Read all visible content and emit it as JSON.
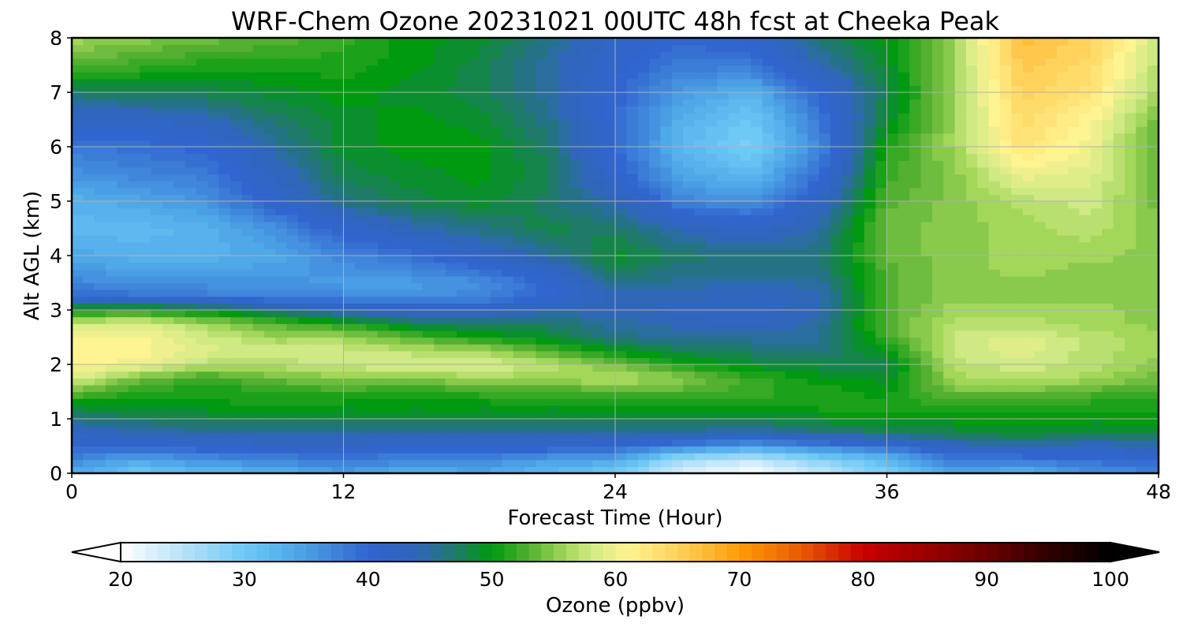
{
  "chart_data": {
    "type": "heatmap",
    "title": "WRF-Chem Ozone  20231021 00UTC 48h fcst at Cheeka Peak",
    "xlabel": "Forecast Time (Hour)",
    "ylabel": "Alt AGL (km)",
    "xlim": [
      0,
      48
    ],
    "ylim": [
      0,
      8
    ],
    "x_ticks": [
      0,
      12,
      24,
      36,
      48
    ],
    "y_ticks": [
      0,
      1,
      2,
      3,
      4,
      5,
      6,
      7,
      8
    ],
    "grid": true,
    "x": [
      0,
      3,
      6,
      9,
      12,
      15,
      18,
      21,
      24,
      27,
      30,
      33,
      36,
      39,
      42,
      45,
      48
    ],
    "y": [
      0,
      0.25,
      0.5,
      0.75,
      1,
      1.25,
      1.5,
      1.75,
      2,
      2.25,
      2.5,
      2.75,
      3,
      3.25,
      3.5,
      3.75,
      4,
      4.5,
      5,
      5.5,
      6,
      6.5,
      7,
      7.5,
      8
    ],
    "z": [
      [
        34,
        30,
        32,
        33,
        35,
        33,
        34,
        32,
        30,
        22,
        20,
        24,
        29,
        34,
        33,
        36,
        37
      ],
      [
        37,
        34,
        36,
        37,
        38,
        37,
        37,
        35,
        34,
        26,
        24,
        28,
        32,
        38,
        38,
        39,
        40
      ],
      [
        40,
        40,
        41,
        42,
        42,
        41,
        41,
        41,
        40,
        37,
        35,
        37,
        39,
        43,
        44,
        43,
        44
      ],
      [
        43,
        44,
        45,
        45,
        45,
        45,
        45,
        45,
        45,
        45,
        44,
        46,
        47,
        48,
        49,
        48,
        48
      ],
      [
        46,
        47,
        48,
        48,
        48,
        48,
        48,
        48,
        48,
        48,
        48,
        49,
        50,
        50,
        50,
        50,
        50
      ],
      [
        49,
        50,
        50,
        51,
        50,
        50,
        50,
        50,
        50,
        51,
        51,
        51,
        51,
        52,
        51,
        51,
        51
      ],
      [
        54,
        51,
        51,
        51,
        52,
        51,
        52,
        52,
        53,
        53,
        52,
        51,
        50,
        54,
        54,
        53,
        52
      ],
      [
        59,
        54,
        52,
        54,
        55,
        55,
        56,
        56,
        57,
        55,
        52,
        50,
        49,
        56,
        57,
        56,
        54
      ],
      [
        61,
        60,
        57,
        57,
        58,
        59,
        59,
        57,
        54,
        51,
        49,
        48,
        48,
        57,
        58,
        57,
        55
      ],
      [
        61,
        61,
        59,
        58,
        58,
        57,
        56,
        53,
        50,
        48,
        47,
        46,
        50,
        58,
        59,
        57,
        56
      ],
      [
        61,
        61,
        58,
        56,
        56,
        53,
        51,
        49,
        46,
        45,
        45,
        45,
        52,
        58,
        59,
        57,
        56
      ],
      [
        58,
        59,
        56,
        53,
        51,
        48,
        47,
        47,
        45,
        44,
        43,
        45,
        53,
        57,
        57,
        56,
        55
      ],
      [
        50,
        51,
        49,
        46,
        43,
        42,
        42,
        44,
        44,
        43,
        43,
        44,
        53,
        56,
        56,
        56,
        55
      ],
      [
        40,
        39,
        38,
        37,
        37,
        36,
        37,
        40,
        44,
        44,
        43,
        44,
        53,
        55,
        55,
        55,
        55
      ],
      [
        37,
        36,
        36,
        36,
        35,
        35,
        36,
        40,
        46,
        45,
        44,
        45,
        53,
        55,
        55,
        55,
        55
      ],
      [
        36,
        34,
        34,
        35,
        36,
        37,
        39,
        42,
        48,
        46,
        46,
        46,
        53,
        55,
        56,
        55,
        55
      ],
      [
        34,
        33,
        33,
        34,
        37,
        39,
        42,
        45,
        49,
        47,
        46,
        46,
        54,
        55,
        56,
        56,
        55
      ],
      [
        32,
        32,
        33,
        36,
        41,
        44,
        46,
        48,
        47,
        44,
        42,
        45,
        54,
        55,
        56,
        57,
        55
      ],
      [
        33,
        34,
        36,
        41,
        46,
        48,
        49,
        47,
        44,
        37,
        36,
        42,
        53,
        55,
        57,
        58,
        54
      ],
      [
        36,
        37,
        38,
        43,
        48,
        49,
        50,
        48,
        41,
        34,
        32,
        39,
        52,
        55,
        60,
        59,
        54
      ],
      [
        38,
        39,
        40,
        45,
        49,
        50,
        50,
        47,
        40,
        32,
        29,
        37,
        51,
        56,
        63,
        60,
        53
      ],
      [
        42,
        42,
        44,
        47,
        49,
        50,
        49,
        46,
        40,
        33,
        30,
        38,
        49,
        56,
        64,
        61,
        54
      ],
      [
        47,
        48,
        48,
        49,
        50,
        49,
        48,
        45,
        40,
        35,
        33,
        40,
        48,
        56,
        65,
        63,
        56
      ],
      [
        53,
        52,
        51,
        51,
        51,
        50,
        48,
        45,
        41,
        38,
        38,
        44,
        49,
        56,
        66,
        64,
        57
      ],
      [
        56,
        55,
        54,
        53,
        52,
        50,
        49,
        46,
        42,
        40,
        41,
        47,
        50,
        56,
        67,
        65,
        58
      ]
    ],
    "colorbar": {
      "label": "Ozone  (ppbv)",
      "min": 20,
      "max": 100,
      "ticks": [
        20,
        30,
        40,
        50,
        60,
        70,
        80,
        90,
        100
      ],
      "extend": "both",
      "stops": [
        {
          "v": 20,
          "c": "#ffffff"
        },
        {
          "v": 26,
          "c": "#a9dcf7"
        },
        {
          "v": 30,
          "c": "#6ec9f7"
        },
        {
          "v": 34,
          "c": "#4fa9e8"
        },
        {
          "v": 40,
          "c": "#3165cf"
        },
        {
          "v": 44,
          "c": "#2f66ba"
        },
        {
          "v": 47,
          "c": "#1f7a6a"
        },
        {
          "v": 50,
          "c": "#009a10"
        },
        {
          "v": 53,
          "c": "#54b030"
        },
        {
          "v": 56,
          "c": "#a3d75a"
        },
        {
          "v": 58,
          "c": "#cfe984"
        },
        {
          "v": 61,
          "c": "#fff491"
        },
        {
          "v": 65,
          "c": "#ffd25c"
        },
        {
          "v": 70,
          "c": "#ff9d07"
        },
        {
          "v": 75,
          "c": "#e85a05"
        },
        {
          "v": 80,
          "c": "#c80000"
        },
        {
          "v": 85,
          "c": "#9c0000"
        },
        {
          "v": 90,
          "c": "#6a0000"
        },
        {
          "v": 95,
          "c": "#300000"
        },
        {
          "v": 100,
          "c": "#000000"
        }
      ]
    }
  }
}
